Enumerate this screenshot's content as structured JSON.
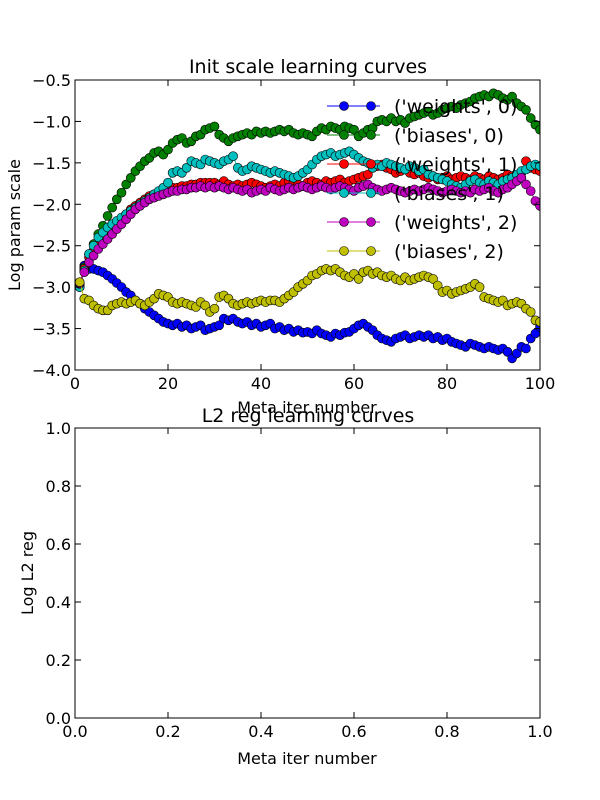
{
  "chart_data": [
    {
      "type": "line",
      "title": "Init scale learning curves",
      "xlabel": "Meta iter number",
      "ylabel": "Log param scale",
      "xlim": [
        0,
        100
      ],
      "ylim": [
        -4.0,
        -0.5
      ],
      "xticks": [
        "0",
        "20",
        "40",
        "60",
        "80",
        "100"
      ],
      "yticks": [
        "−0.5",
        "−1.0",
        "−1.5",
        "−2.0",
        "−2.5",
        "−3.0",
        "−3.5",
        "−4.0"
      ],
      "legend_position": "top-right",
      "grid": false,
      "series": [
        {
          "name": "('weights', 0)",
          "color": "#0000ff",
          "x_start": 1,
          "values": [
            -3.0,
            -2.74,
            -2.78,
            -2.78,
            -2.8,
            -2.82,
            -2.86,
            -2.9,
            -2.95,
            -3.0,
            -3.06,
            -3.1,
            -3.16,
            -3.2,
            -3.26,
            -3.3,
            -3.34,
            -3.38,
            -3.42,
            -3.44,
            -3.46,
            -3.44,
            -3.48,
            -3.46,
            -3.5,
            -3.48,
            -3.46,
            -3.52,
            -3.5,
            -3.48,
            -3.46,
            -3.38,
            -3.4,
            -3.38,
            -3.42,
            -3.44,
            -3.42,
            -3.46,
            -3.44,
            -3.48,
            -3.46,
            -3.44,
            -3.5,
            -3.48,
            -3.52,
            -3.5,
            -3.54,
            -3.52,
            -3.55,
            -3.54,
            -3.56,
            -3.52,
            -3.56,
            -3.58,
            -3.6,
            -3.56,
            -3.58,
            -3.55,
            -3.54,
            -3.5,
            -3.46,
            -3.44,
            -3.48,
            -3.52,
            -3.58,
            -3.62,
            -3.64,
            -3.66,
            -3.62,
            -3.6,
            -3.58,
            -3.62,
            -3.6,
            -3.58,
            -3.6,
            -3.58,
            -3.62,
            -3.6,
            -3.64,
            -3.62,
            -3.66,
            -3.68,
            -3.7,
            -3.72,
            -3.68,
            -3.7,
            -3.72,
            -3.74,
            -3.72,
            -3.74,
            -3.76,
            -3.74,
            -3.78,
            -3.86,
            -3.8,
            -3.72,
            -3.74,
            -3.62,
            -3.56,
            -3.48
          ]
        },
        {
          "name": "('biases', 0)",
          "color": "#008000",
          "x_start": 1,
          "values": [
            -2.98,
            -2.76,
            -2.6,
            -2.48,
            -2.36,
            -2.26,
            -2.14,
            -2.04,
            -1.94,
            -1.86,
            -1.76,
            -1.68,
            -1.6,
            -1.54,
            -1.48,
            -1.44,
            -1.38,
            -1.36,
            -1.4,
            -1.34,
            -1.26,
            -1.22,
            -1.2,
            -1.26,
            -1.24,
            -1.18,
            -1.16,
            -1.1,
            -1.08,
            -1.06,
            -1.16,
            -1.2,
            -1.24,
            -1.2,
            -1.18,
            -1.16,
            -1.14,
            -1.16,
            -1.12,
            -1.14,
            -1.12,
            -1.14,
            -1.12,
            -1.1,
            -1.12,
            -1.1,
            -1.14,
            -1.16,
            -1.14,
            -1.16,
            -1.18,
            -1.12,
            -1.08,
            -1.1,
            -1.06,
            -1.08,
            -1.1,
            -1.06,
            -1.08,
            -1.1,
            -1.18,
            -1.14,
            -1.1,
            -1.08,
            -1.0,
            -0.98,
            -1.0,
            -0.96,
            -1.0,
            -0.98,
            -1.02,
            -0.96,
            -0.94,
            -0.92,
            -0.9,
            -0.88,
            -0.92,
            -0.9,
            -0.86,
            -0.84,
            -0.82,
            -0.84,
            -0.8,
            -0.78,
            -0.76,
            -0.72,
            -0.7,
            -0.68,
            -0.7,
            -0.66,
            -0.68,
            -0.72,
            -0.74,
            -0.7,
            -0.78,
            -0.82,
            -0.86,
            -0.96,
            -1.04,
            -1.1
          ]
        },
        {
          "name": "('weights', 1)",
          "color": "#ff0000",
          "x_start": 1,
          "values": [
            -2.96,
            -2.78,
            -2.64,
            -2.56,
            -2.48,
            -2.42,
            -2.36,
            -2.3,
            -2.24,
            -2.18,
            -2.12,
            -2.06,
            -2.02,
            -1.98,
            -1.94,
            -1.9,
            -1.88,
            -1.86,
            -1.84,
            -1.82,
            -1.8,
            -1.8,
            -1.78,
            -1.78,
            -1.76,
            -1.76,
            -1.74,
            -1.74,
            -1.74,
            -1.74,
            -1.76,
            -1.72,
            -1.76,
            -1.78,
            -1.76,
            -1.78,
            -1.76,
            -1.74,
            -1.76,
            -1.78,
            -1.8,
            -1.78,
            -1.76,
            -1.78,
            -1.74,
            -1.72,
            -1.74,
            -1.76,
            -1.78,
            -1.74,
            -1.72,
            -1.74,
            -1.76,
            -1.72,
            -1.74,
            -1.72,
            -1.7,
            -1.74,
            -1.72,
            -1.7,
            -1.68,
            -1.66,
            -1.64,
            -1.56,
            -1.54,
            -1.52,
            -1.56,
            -1.58,
            -1.62,
            -1.6,
            -1.58,
            -1.62,
            -1.64,
            -1.62,
            -1.66,
            -1.68,
            -1.66,
            -1.7,
            -1.68,
            -1.66,
            -1.7,
            -1.68,
            -1.66,
            -1.68,
            -1.7,
            -1.66,
            -1.68,
            -1.7,
            -1.66,
            -1.68,
            -1.7,
            -1.68,
            -1.64,
            -1.66,
            -1.68,
            -1.62,
            -1.48,
            -1.56,
            -1.58,
            -1.6
          ]
        },
        {
          "name": "('biases', 1)",
          "color": "#00bfbf",
          "x_start": 1,
          "values": [
            -3.0,
            -2.8,
            -2.6,
            -2.5,
            -2.4,
            -2.34,
            -2.28,
            -2.24,
            -2.2,
            -2.16,
            -2.12,
            -2.08,
            -2.04,
            -2.0,
            -1.96,
            -1.92,
            -1.88,
            -1.84,
            -1.8,
            -1.74,
            -1.62,
            -1.6,
            -1.62,
            -1.56,
            -1.48,
            -1.5,
            -1.52,
            -1.46,
            -1.48,
            -1.5,
            -1.52,
            -1.48,
            -1.46,
            -1.42,
            -1.56,
            -1.6,
            -1.58,
            -1.54,
            -1.56,
            -1.58,
            -1.6,
            -1.62,
            -1.6,
            -1.62,
            -1.64,
            -1.66,
            -1.68,
            -1.66,
            -1.62,
            -1.58,
            -1.52,
            -1.46,
            -1.42,
            -1.4,
            -1.38,
            -1.42,
            -1.4,
            -1.38,
            -1.36,
            -1.4,
            -1.44,
            -1.48,
            -1.5,
            -1.56,
            -1.52,
            -1.54,
            -1.5,
            -1.52,
            -1.54,
            -1.56,
            -1.58,
            -1.54,
            -1.56,
            -1.6,
            -1.58,
            -1.64,
            -1.66,
            -1.68,
            -1.7,
            -1.72,
            -1.76,
            -1.78,
            -1.8,
            -1.76,
            -1.72,
            -1.7,
            -1.74,
            -1.76,
            -1.72,
            -1.74,
            -1.76,
            -1.72,
            -1.7,
            -1.68,
            -1.64,
            -1.6,
            -1.58,
            -1.54,
            -1.52,
            -1.54
          ]
        },
        {
          "name": "('weights', 2)",
          "color": "#bf00bf",
          "x_start": 1,
          "values": [
            -2.96,
            -2.82,
            -2.7,
            -2.62,
            -2.54,
            -2.48,
            -2.42,
            -2.36,
            -2.3,
            -2.24,
            -2.18,
            -2.12,
            -2.06,
            -2.02,
            -1.98,
            -1.94,
            -1.92,
            -1.9,
            -1.88,
            -1.86,
            -1.84,
            -1.84,
            -1.82,
            -1.82,
            -1.8,
            -1.8,
            -1.78,
            -1.8,
            -1.78,
            -1.8,
            -1.78,
            -1.8,
            -1.82,
            -1.8,
            -1.82,
            -1.84,
            -1.82,
            -1.86,
            -1.84,
            -1.82,
            -1.84,
            -1.8,
            -1.82,
            -1.84,
            -1.82,
            -1.8,
            -1.82,
            -1.8,
            -1.78,
            -1.8,
            -1.82,
            -1.8,
            -1.78,
            -1.8,
            -1.82,
            -1.8,
            -1.78,
            -1.8,
            -1.82,
            -1.84,
            -1.8,
            -1.78,
            -1.76,
            -1.8,
            -1.82,
            -1.84,
            -1.82,
            -1.8,
            -1.82,
            -1.84,
            -1.86,
            -1.84,
            -1.82,
            -1.84,
            -1.82,
            -1.8,
            -1.82,
            -1.84,
            -1.86,
            -1.84,
            -1.82,
            -1.84,
            -1.86,
            -1.84,
            -1.86,
            -1.82,
            -1.84,
            -1.82,
            -1.8,
            -1.84,
            -1.86,
            -1.82,
            -1.8,
            -1.76,
            -1.72,
            -1.68,
            -1.76,
            -1.84,
            -1.96,
            -2.02
          ]
        },
        {
          "name": "('biases', 2)",
          "color": "#bfbf00",
          "x_start": 1,
          "values": [
            -2.94,
            -3.14,
            -3.16,
            -3.22,
            -3.26,
            -3.28,
            -3.28,
            -3.22,
            -3.2,
            -3.18,
            -3.2,
            -3.18,
            -3.16,
            -3.2,
            -3.22,
            -3.18,
            -3.14,
            -3.08,
            -3.1,
            -3.12,
            -3.18,
            -3.2,
            -3.18,
            -3.2,
            -3.22,
            -3.24,
            -3.18,
            -3.22,
            -3.3,
            -3.26,
            -3.12,
            -3.1,
            -3.14,
            -3.2,
            -3.22,
            -3.2,
            -3.18,
            -3.2,
            -3.18,
            -3.16,
            -3.18,
            -3.16,
            -3.16,
            -3.18,
            -3.14,
            -3.1,
            -3.06,
            -3.0,
            -2.96,
            -2.92,
            -2.86,
            -2.84,
            -2.8,
            -2.78,
            -2.8,
            -2.78,
            -2.82,
            -2.86,
            -2.88,
            -2.84,
            -2.9,
            -2.82,
            -2.8,
            -2.84,
            -2.82,
            -2.86,
            -2.88,
            -2.86,
            -2.9,
            -2.92,
            -2.88,
            -2.92,
            -2.9,
            -2.88,
            -2.86,
            -2.88,
            -2.9,
            -2.98,
            -3.06,
            -3.04,
            -3.08,
            -3.06,
            -3.04,
            -3.02,
            -3.0,
            -2.96,
            -3.0,
            -3.12,
            -3.14,
            -3.16,
            -3.18,
            -3.16,
            -3.22,
            -3.2,
            -3.18,
            -3.2,
            -3.26,
            -3.3,
            -3.4,
            -3.42
          ]
        }
      ]
    },
    {
      "type": "line",
      "title": "L2 reg learning curves",
      "xlabel": "Meta iter number",
      "ylabel": "Log L2 reg",
      "xlim": [
        0,
        1
      ],
      "ylim": [
        0,
        1
      ],
      "xticks": [
        "0.0",
        "0.2",
        "0.4",
        "0.6",
        "0.8",
        "1.0"
      ],
      "yticks": [
        "1.0",
        "0.8",
        "0.6",
        "0.4",
        "0.2",
        "0.0"
      ],
      "grid": false,
      "series": []
    }
  ]
}
